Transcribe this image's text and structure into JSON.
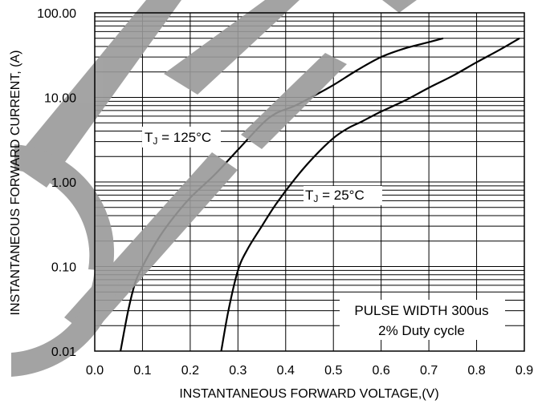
{
  "chart_data": {
    "type": "line",
    "title": "",
    "xlabel": "INSTANTANEOUS FORWARD VOLTAGE,(V)",
    "ylabel": "INSTANTANEOUS FORWARD CURRENT, (A)",
    "xlim": [
      0.0,
      0.9
    ],
    "ylim": [
      0.01,
      100
    ],
    "yscale": "log",
    "grid": true,
    "x_ticks": [
      "0.0",
      "0.1",
      "0.2",
      "0.3",
      "0.4",
      "0.5",
      "0.6",
      "0.7",
      "0.8",
      "0.9"
    ],
    "y_ticks": [
      "0.01",
      "0.10",
      "1.00",
      "10.00",
      "100.00"
    ],
    "series": [
      {
        "name": "TJ = 125°C",
        "label_main": "T",
        "label_sub": "J",
        "label_rest": " = 125°C",
        "x": [
          0.054,
          0.07,
          0.085,
          0.1,
          0.13,
          0.16,
          0.2,
          0.25,
          0.3,
          0.35,
          0.38,
          0.42,
          0.46,
          0.5,
          0.55,
          0.6,
          0.65,
          0.7,
          0.73
        ],
        "y": [
          0.01,
          0.03,
          0.065,
          0.1,
          0.2,
          0.35,
          0.65,
          1.2,
          2.4,
          4.8,
          6.5,
          8.0,
          10.5,
          14,
          21,
          30,
          38,
          45,
          50
        ]
      },
      {
        "name": "TJ = 25°C",
        "label_main": "T",
        "label_sub": "J",
        "label_rest": " = 25°C",
        "x": [
          0.265,
          0.28,
          0.3,
          0.32,
          0.35,
          0.38,
          0.42,
          0.46,
          0.5,
          0.53,
          0.56,
          0.6,
          0.65,
          0.7,
          0.75,
          0.8,
          0.85,
          0.89
        ],
        "y": [
          0.01,
          0.03,
          0.09,
          0.16,
          0.3,
          0.55,
          1.1,
          2.0,
          3.3,
          4.3,
          5.2,
          6.8,
          9.2,
          13,
          18,
          26,
          37,
          50
        ]
      }
    ],
    "annotations": [
      "PULSE WIDTH 300us",
      "2% Duty cycle"
    ]
  }
}
